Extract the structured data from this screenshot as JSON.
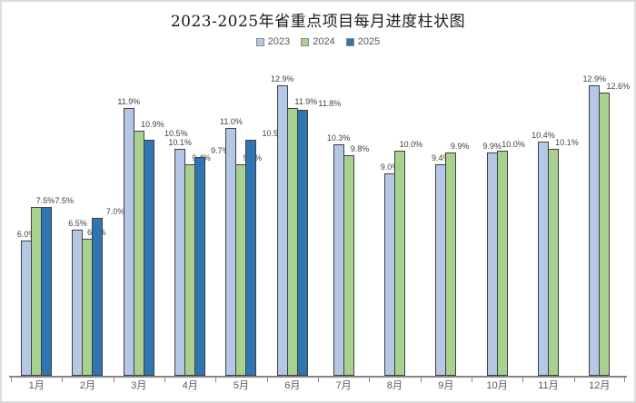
{
  "chart_data": {
    "type": "bar",
    "title": "2023-2025年省重点项目每月进度柱状图",
    "categories": [
      "1月",
      "2月",
      "3月",
      "4月",
      "5月",
      "6月",
      "7月",
      "8月",
      "9月",
      "10月",
      "11月",
      "12月"
    ],
    "series": [
      {
        "name": "2023",
        "color": "#b4c7e7",
        "values": [
          6.0,
          6.5,
          11.9,
          10.1,
          11.0,
          12.9,
          10.3,
          9.0,
          9.4,
          9.9,
          10.4,
          12.9
        ]
      },
      {
        "name": "2024",
        "color": "#a9d18e",
        "values": [
          7.5,
          6.1,
          10.9,
          9.4,
          9.4,
          11.9,
          9.8,
          10.0,
          9.9,
          10.0,
          10.1,
          12.6
        ]
      },
      {
        "name": "2025",
        "color": "#2e75b6",
        "values": [
          7.5,
          7.0,
          10.5,
          9.7,
          10.5,
          11.8,
          null,
          null,
          null,
          null,
          null,
          null
        ]
      }
    ],
    "value_suffix": "%",
    "value_decimals": 1,
    "ylim": [
      0,
      13.5
    ],
    "grid": false,
    "legend_position": "top",
    "bar_border_color": "#404040",
    "axis_color": "#868686",
    "data_label_color": "#404040",
    "tick_label_color": "#595959"
  }
}
